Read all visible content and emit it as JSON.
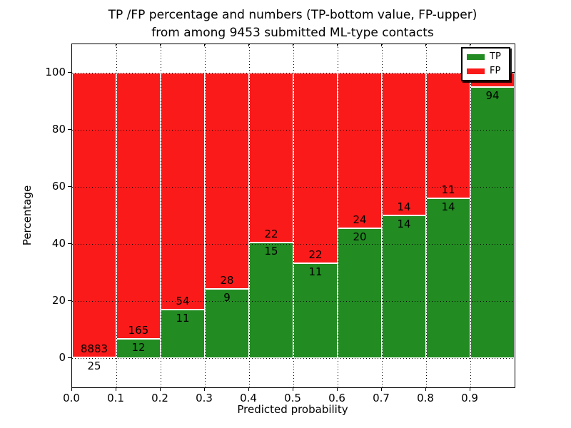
{
  "title": {
    "line1": "TP /FP percentage and numbers (TP-bottom value, FP-upper)",
    "line2": "from among 9453 submitted ML-type contacts"
  },
  "axes": {
    "xlabel": "Predicted probability",
    "ylabel": "Percentage",
    "xtick_labels": [
      "0.0",
      "0.1",
      "0.2",
      "0.3",
      "0.4",
      "0.5",
      "0.6",
      "0.7",
      "0.8",
      "0.9"
    ],
    "ytick_labels": [
      "0",
      "20",
      "40",
      "60",
      "80",
      "100"
    ],
    "ytick_values": [
      0,
      20,
      40,
      60,
      80,
      100
    ]
  },
  "legend": {
    "items": [
      {
        "label": "TP",
        "color": "#228B22"
      },
      {
        "label": "FP",
        "color": "#FA1A1A"
      }
    ]
  },
  "colors": {
    "tp": "#228B22",
    "fp": "#FA1A1A",
    "background": "#ffffff"
  },
  "chart_data": {
    "type": "bar",
    "stacked": true,
    "normalized_to_100_percent": true,
    "title": "TP /FP percentage and numbers (TP-bottom value, FP-upper) from among 9453 submitted ML-type contacts",
    "xlabel": "Predicted probability",
    "ylabel": "Percentage",
    "xlim": [
      0.0,
      1.0
    ],
    "ylim": [
      -10,
      110
    ],
    "grid": true,
    "legend_position": "upper right",
    "bin_edges": [
      0.0,
      0.1,
      0.2,
      0.3,
      0.4,
      0.5,
      0.6,
      0.7,
      0.8,
      0.9,
      1.0
    ],
    "categories": [
      "0.0",
      "0.1",
      "0.2",
      "0.3",
      "0.4",
      "0.5",
      "0.6",
      "0.7",
      "0.8",
      "0.9"
    ],
    "series": [
      {
        "name": "TP",
        "color": "#228B22",
        "counts": [
          25,
          12,
          11,
          9,
          15,
          11,
          20,
          14,
          14,
          94
        ]
      },
      {
        "name": "FP",
        "color": "#FA1A1A",
        "counts": [
          8883,
          165,
          54,
          28,
          22,
          22,
          24,
          14,
          11,
          null
        ]
      }
    ],
    "tp_percent": [
      0.28,
      6.78,
      16.92,
      24.32,
      40.54,
      33.33,
      45.45,
      50.0,
      56.0,
      94.95
    ],
    "tp_bar_labels": [
      "25",
      "12",
      "11",
      "9",
      "15",
      "11",
      "20",
      "14",
      "14",
      "94"
    ],
    "fp_bar_labels": [
      "8883",
      "165",
      "54",
      "28",
      "22",
      "22",
      "24",
      "14",
      "11",
      ""
    ],
    "note_fp_label_bin_0.9_hidden_behind_legend": true
  }
}
